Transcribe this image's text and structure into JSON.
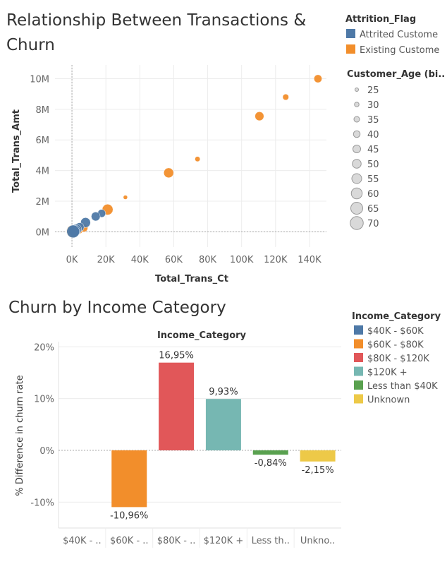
{
  "chart_data": [
    {
      "type": "scatter",
      "title": "Relationship Between Transactions & Churn",
      "xlabel": "Total_Trans_Ct",
      "ylabel": "Total_Trans_Amt",
      "xlim": [
        -10000,
        150000
      ],
      "ylim": [
        -1000000,
        10900000
      ],
      "x_ticks": [
        0,
        20000,
        40000,
        60000,
        80000,
        100000,
        120000,
        140000
      ],
      "x_tick_labels": [
        "0K",
        "20K",
        "40K",
        "60K",
        "80K",
        "100K",
        "120K",
        "140K"
      ],
      "y_ticks": [
        0,
        2000000,
        4000000,
        6000000,
        8000000,
        10000000
      ],
      "y_tick_labels": [
        "0M",
        "2M",
        "4M",
        "6M",
        "8M",
        "10M"
      ],
      "grid": true,
      "color_legend": {
        "title": "Attrition_Flag",
        "items": [
          {
            "label": "Attrited Custome",
            "color": "#4e79a7"
          },
          {
            "label": "Existing Custome",
            "color": "#f28e2b"
          }
        ]
      },
      "size_legend": {
        "title": "Customer_Age (bi..",
        "items": [
          "25",
          "30",
          "35",
          "40",
          "45",
          "50",
          "55",
          "60",
          "65",
          "70"
        ]
      },
      "series": [
        {
          "name": "Existing Custome",
          "color": "#f28e2b",
          "points": [
            {
              "x": 145000,
              "y": 10000000,
              "age": 45
            },
            {
              "x": 126000,
              "y": 8800000,
              "age": 35
            },
            {
              "x": 110500,
              "y": 7550000,
              "age": 50
            },
            {
              "x": 74000,
              "y": 4750000,
              "age": 30
            },
            {
              "x": 57000,
              "y": 3850000,
              "age": 55
            },
            {
              "x": 31500,
              "y": 2250000,
              "age": 25
            },
            {
              "x": 21000,
              "y": 1450000,
              "age": 60
            },
            {
              "x": 7000,
              "y": 250000,
              "age": 45
            },
            {
              "x": 4000,
              "y": 150000,
              "age": 50
            },
            {
              "x": 500,
              "y": 30000,
              "age": 70
            }
          ]
        },
        {
          "name": "Attrited Custome",
          "color": "#4e79a7",
          "points": [
            {
              "x": 17500,
              "y": 1200000,
              "age": 45
            },
            {
              "x": 14000,
              "y": 1000000,
              "age": 50
            },
            {
              "x": 8000,
              "y": 600000,
              "age": 55
            },
            {
              "x": 4500,
              "y": 300000,
              "age": 50
            },
            {
              "x": 2500,
              "y": 150000,
              "age": 60
            },
            {
              "x": 1500,
              "y": 60000,
              "age": 65
            },
            {
              "x": 700,
              "y": 20000,
              "age": 70
            }
          ]
        }
      ]
    },
    {
      "type": "bar",
      "title": "Churn by Income Category",
      "column_header": "Income_Category",
      "ylabel": "% Difference in churn rate",
      "ylim": [
        -15,
        21
      ],
      "y_ticks": [
        -10,
        0,
        10,
        20
      ],
      "y_tick_labels": [
        "-10%",
        "0%",
        "10%",
        "20%"
      ],
      "categories": [
        "$40K - ..",
        "$60K - ..",
        "$80K - ..",
        "$120K +",
        "Less th..",
        "Unkno.."
      ],
      "values": [
        0,
        -10.96,
        16.95,
        9.93,
        -0.84,
        -2.15
      ],
      "data_labels": [
        "",
        "-10,96%",
        "16,95%",
        "9,93%",
        "-0,84%",
        "-2,15%"
      ],
      "colors": [
        "#4e79a7",
        "#f28e2b",
        "#e15759",
        "#76b7b2",
        "#59a14f",
        "#edc948"
      ],
      "legend": {
        "title": "Income_Category",
        "items": [
          {
            "label": "$40K - $60K",
            "color": "#4e79a7"
          },
          {
            "label": "$60K - $80K",
            "color": "#f28e2b"
          },
          {
            "label": "$80K - $120K",
            "color": "#e15759"
          },
          {
            "label": "$120K +",
            "color": "#76b7b2"
          },
          {
            "label": "Less than $40K",
            "color": "#59a14f"
          },
          {
            "label": "Unknown",
            "color": "#edc948"
          }
        ]
      }
    }
  ]
}
